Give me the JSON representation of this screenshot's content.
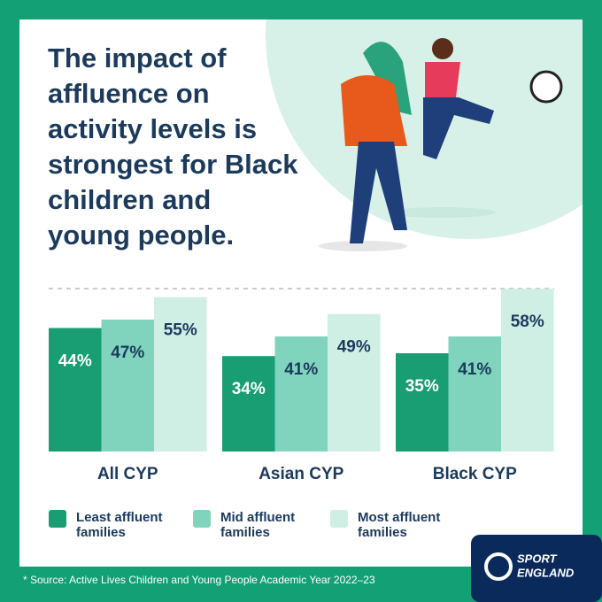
{
  "chart_data": {
    "type": "bar",
    "title": [
      "The impact of",
      "affluence on",
      "activity levels is",
      "strongest for Black",
      "children and",
      "young people."
    ],
    "categories": [
      "All CYP",
      "Asian CYP",
      "Black CYP"
    ],
    "series": [
      {
        "name": "Least affluent families",
        "color": "#189e72",
        "values": [
          44,
          34,
          35
        ],
        "value_labels": [
          "44%",
          "34%",
          "35%"
        ]
      },
      {
        "name": "Mid affluent families",
        "color": "#80d4bd",
        "values": [
          47,
          41,
          41
        ],
        "value_labels": [
          "47%",
          "41%",
          "41%"
        ]
      },
      {
        "name": "Most affluent families",
        "color": "#cfeee4",
        "values": [
          55,
          49,
          58
        ],
        "value_labels": [
          "55%",
          "49%",
          "58%"
        ]
      }
    ]
  },
  "footer": {
    "source": "*  Source: Active Lives Children and Young People Academic Year 2022–23",
    "logo": [
      "SPORT",
      "ENGLAND"
    ]
  }
}
